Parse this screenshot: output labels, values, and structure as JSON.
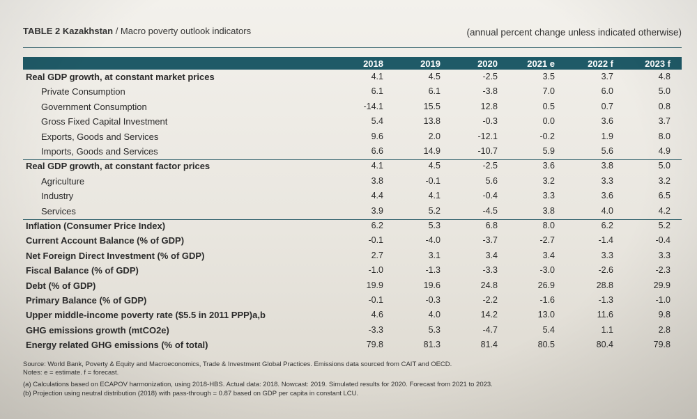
{
  "table": {
    "number": "TABLE 2",
    "country": "Kazakhstan",
    "title_rest": " / Macro poverty outlook indicators",
    "units": "(annual percent change unless indicated otherwise)",
    "years": [
      "2018",
      "2019",
      "2020",
      "2021 e",
      "2022 f",
      "2023 f"
    ],
    "rows": [
      {
        "label": "Real GDP growth, at constant market prices",
        "style": "main",
        "values": [
          "4.1",
          "4.5",
          "-2.5",
          "3.5",
          "3.7",
          "4.8"
        ]
      },
      {
        "label": "Private Consumption",
        "style": "sub",
        "values": [
          "6.1",
          "6.1",
          "-3.8",
          "7.0",
          "6.0",
          "5.0"
        ]
      },
      {
        "label": "Government Consumption",
        "style": "sub",
        "values": [
          "-14.1",
          "15.5",
          "12.8",
          "0.5",
          "0.7",
          "0.8"
        ]
      },
      {
        "label": "Gross Fixed Capital Investment",
        "style": "sub",
        "values": [
          "5.4",
          "13.8",
          "-0.3",
          "0.0",
          "3.6",
          "3.7"
        ]
      },
      {
        "label": "Exports, Goods and Services",
        "style": "sub",
        "values": [
          "9.6",
          "2.0",
          "-12.1",
          "-0.2",
          "1.9",
          "8.0"
        ]
      },
      {
        "label": "Imports, Goods and Services",
        "style": "sub",
        "values": [
          "6.6",
          "14.9",
          "-10.7",
          "5.9",
          "5.6",
          "4.9"
        ]
      },
      {
        "label": "Real GDP growth, at constant factor prices",
        "style": "main",
        "values": [
          "4.1",
          "4.5",
          "-2.5",
          "3.6",
          "3.8",
          "5.0"
        ]
      },
      {
        "label": "Agriculture",
        "style": "sub",
        "values": [
          "3.8",
          "-0.1",
          "5.6",
          "3.2",
          "3.3",
          "3.2"
        ]
      },
      {
        "label": "Industry",
        "style": "sub",
        "values": [
          "4.4",
          "4.1",
          "-0.4",
          "3.3",
          "3.6",
          "6.5"
        ]
      },
      {
        "label": "Services",
        "style": "sub",
        "values": [
          "3.9",
          "5.2",
          "-4.5",
          "3.8",
          "4.0",
          "4.2"
        ]
      },
      {
        "label": "Inflation (Consumer Price Index)",
        "style": "main",
        "values": [
          "6.2",
          "5.3",
          "6.8",
          "8.0",
          "6.2",
          "5.2"
        ]
      },
      {
        "label": "Current Account Balance (% of GDP)",
        "style": "main",
        "values": [
          "-0.1",
          "-4.0",
          "-3.7",
          "-2.7",
          "-1.4",
          "-0.4"
        ]
      },
      {
        "label": "Net Foreign Direct Investment (% of GDP)",
        "style": "main",
        "values": [
          "2.7",
          "3.1",
          "3.4",
          "3.4",
          "3.3",
          "3.3"
        ]
      },
      {
        "label": "Fiscal Balance (% of GDP)",
        "style": "main",
        "values": [
          "-1.0",
          "-1.3",
          "-3.3",
          "-3.0",
          "-2.6",
          "-2.3"
        ]
      },
      {
        "label": "Debt (% of GDP)",
        "style": "main",
        "values": [
          "19.9",
          "19.6",
          "24.8",
          "26.9",
          "28.8",
          "29.9"
        ]
      },
      {
        "label": "Primary Balance (% of GDP)",
        "style": "main",
        "values": [
          "-0.1",
          "-0.3",
          "-2.2",
          "-1.6",
          "-1.3",
          "-1.0"
        ]
      },
      {
        "label": "Upper middle-income poverty rate ($5.5 in 2011 PPP)a,b",
        "style": "main",
        "values": [
          "4.6",
          "4.0",
          "14.2",
          "13.0",
          "11.6",
          "9.8"
        ]
      },
      {
        "label": "GHG emissions growth (mtCO2e)",
        "style": "main",
        "values": [
          "-3.3",
          "5.3",
          "-4.7",
          "5.4",
          "1.1",
          "2.8"
        ]
      },
      {
        "label": "Energy related GHG emissions (% of total)",
        "style": "main",
        "values": [
          "79.8",
          "81.3",
          "81.4",
          "80.5",
          "80.4",
          "79.8"
        ]
      }
    ],
    "notes": {
      "source": "Source: World Bank, Poverty & Equity and Macroeconomics, Trade & Investment Global Practices. Emissions data sourced from CAIT and OECD.",
      "legend": "Notes: e = estimate. f = forecast.",
      "a": "(a) Calculations based on ECAPOV harmonization, using 2018-HBS. Actual data: 2018. Nowcast: 2019. Simulated results for 2020. Forecast from 2021 to 2023.",
      "b": "(b) Projection using neutral distribution (2018) with pass-through = 0.87 based on GDP per capita in constant LCU."
    },
    "colors": {
      "header": "#1f5a67",
      "rule": "#2e5f6a"
    }
  }
}
